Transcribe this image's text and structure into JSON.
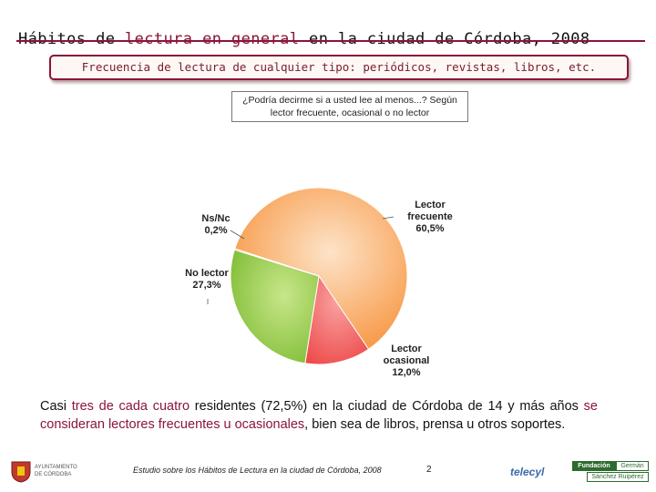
{
  "header": {
    "title_part1": "Hábitos de ",
    "title_highlight": "lectura en general",
    "title_part2": " en la ciudad de Córdoba, 2008",
    "subtitle": "Frecuencia de lectura de cualquier tipo: periódicos, revistas, libros, etc."
  },
  "question": {
    "line1": "¿Podría decirme si a usted lee al menos...? Según",
    "line2": "lector frecuente, ocasional o no lector"
  },
  "chart_data": {
    "type": "pie",
    "title": "Frecuencia de lectura de cualquier tipo: periódicos, revistas, libros, etc.",
    "slices": [
      {
        "name": "Lector frecuente",
        "label_lines": [
          "Lector",
          "frecuente"
        ],
        "value": 60.5,
        "value_label": "60,5%",
        "color": "#f7a25a"
      },
      {
        "name": "Lector ocasional",
        "label_lines": [
          "Lector",
          "ocasional"
        ],
        "value": 12.0,
        "value_label": "12,0%",
        "color": "#f05a5a"
      },
      {
        "name": "No lector",
        "label_lines": [
          "No lector"
        ],
        "value": 27.3,
        "value_label": "27,3%",
        "color": "#8cc63f"
      },
      {
        "name": "Ns/Nc",
        "label_lines": [
          "Ns/Nc"
        ],
        "value": 0.2,
        "value_label": "0,2%",
        "color": "#5a7fbf"
      }
    ]
  },
  "description": {
    "p1": "Casi ",
    "hl1": "tres de cada cuatro",
    "p2": " residentes (72,5%) en la ciudad de Córdoba de 14 y más años ",
    "hl2": "se consideran lectores frecuentes u ocasionales",
    "p3": ", bien sea de libros, prensa u otros soportes."
  },
  "footer": {
    "study": "Estudio sobre los Hábitos de Lectura en la ciudad de Córdoba, 2008",
    "page": "2",
    "ayto_line1": "AYUNTAMIENTO",
    "ayto_line2": "DE CÓRDOBA",
    "telecyl": "telecyl",
    "fund_a": "Fundación",
    "fund_b": "Germán",
    "fund_c": "Sánchez Ruipérez"
  },
  "colors": {
    "accent": "#8a1538"
  }
}
